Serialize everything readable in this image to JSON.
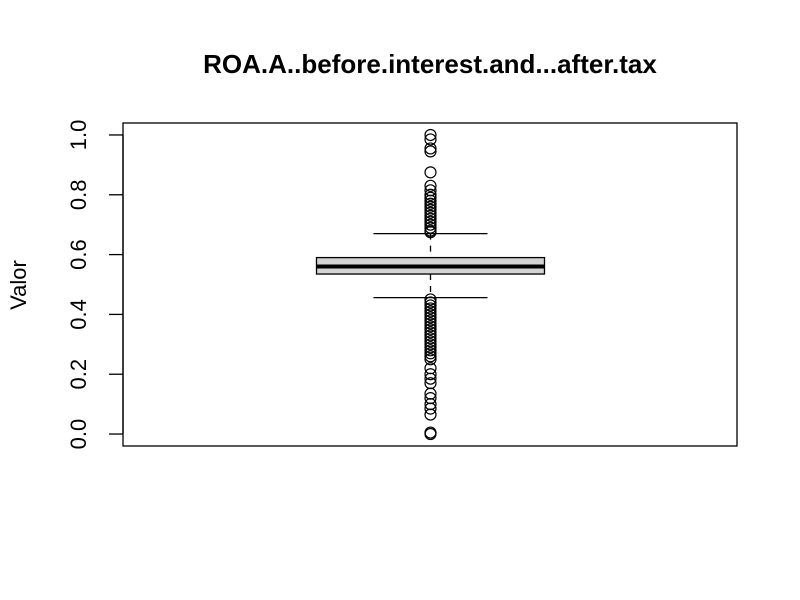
{
  "chart_data": {
    "type": "box",
    "title": "ROA.A..before.interest.and...after.tax",
    "xlabel": "",
    "ylabel": "Valor",
    "ylim": [
      -0.04,
      1.04
    ],
    "y_ticks": [
      0.0,
      0.2,
      0.4,
      0.6,
      0.8,
      1.0
    ],
    "y_tick_labels": [
      "0.0",
      "0.2",
      "0.4",
      "0.6",
      "0.8",
      "1.0"
    ],
    "box": {
      "lower_whisker": 0.456,
      "q1": 0.535,
      "median": 0.56,
      "q3": 0.59,
      "upper_whisker": 0.67
    },
    "outliers_high": [
      1.0,
      0.985,
      0.955,
      0.945,
      0.875,
      0.83,
      0.815,
      0.8,
      0.79,
      0.78,
      0.77,
      0.76,
      0.75,
      0.74,
      0.73,
      0.72,
      0.71,
      0.7,
      0.69,
      0.68,
      0.675
    ],
    "outliers_low": [
      0.45,
      0.44,
      0.43,
      0.42,
      0.41,
      0.4,
      0.39,
      0.38,
      0.37,
      0.36,
      0.35,
      0.34,
      0.33,
      0.32,
      0.31,
      0.3,
      0.29,
      0.28,
      0.27,
      0.26,
      0.25,
      0.22,
      0.2,
      0.185,
      0.17,
      0.135,
      0.12,
      0.1,
      0.085,
      0.065,
      0.005,
      0.0
    ],
    "grid": false
  }
}
